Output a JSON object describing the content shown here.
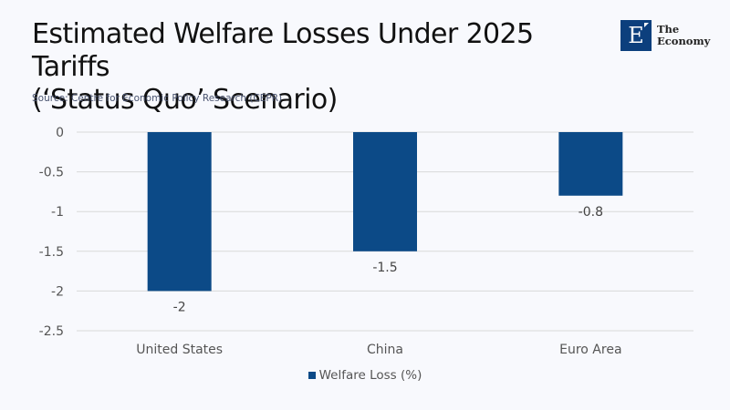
{
  "header": {
    "title_line1": "Estimated Welfare Losses Under 2025 Tariffs",
    "title_line2": "(‘Status Quo’ Scenario)",
    "source": "Source: Centre for Economic Policy Research (CEPR)"
  },
  "logo": {
    "letter": "E",
    "line1": "The",
    "line2": "Economy",
    "color": "#0c3f7d"
  },
  "chart_data": {
    "type": "bar",
    "title": "Estimated Welfare Losses Under 2025 Tariffs (‘Status Quo’ Scenario)",
    "subtitle": "Source: Centre for Economic Policy Research (CEPR)",
    "xlabel": "",
    "ylabel": "",
    "categories": [
      "United States",
      "China",
      "Euro Area"
    ],
    "series": [
      {
        "name": "Welfare Loss (%)",
        "values": [
          -2,
          -1.5,
          -0.8
        ],
        "color": "#0c4a87"
      }
    ],
    "data_labels": [
      "-2",
      "-1.5",
      "-0.8"
    ],
    "ylim": [
      -2.5,
      0
    ],
    "yticks": [
      0,
      -0.5,
      -1,
      -1.5,
      -2,
      -2.5
    ],
    "ytick_labels": [
      "0",
      "-0.5",
      "-1",
      "-1.5",
      "-2",
      "-2.5"
    ],
    "grid": true,
    "legend_position": "bottom"
  }
}
